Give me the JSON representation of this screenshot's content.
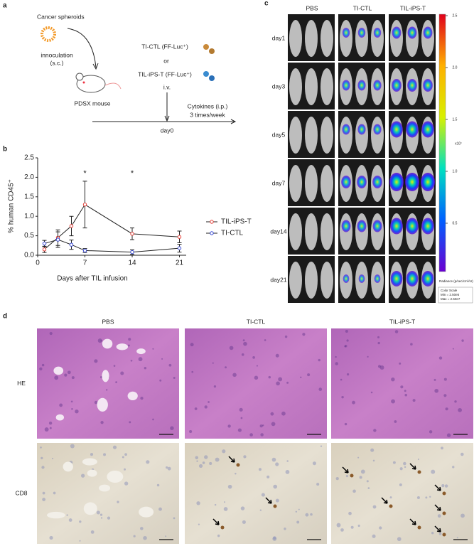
{
  "panel_labels": [
    "a",
    "b",
    "c",
    "d"
  ],
  "panel_a": {
    "spheroids": "Cancer spheroids",
    "inoculation": "innoculation",
    "route_sc": "(s.c.)",
    "mouse": "PDSX mouse",
    "ti_ctl": "TI-CTL (FF-Luc⁺)",
    "or": "or",
    "til_ips": "TIL-iPS-T (FF-Luc⁺)",
    "iv": "i.v.",
    "cytokines": "Cytokines (i.p.)",
    "schedule": "3 times/week",
    "day0": "day0"
  },
  "chart_data": {
    "type": "line",
    "x": [
      1,
      3,
      5,
      7,
      14,
      21
    ],
    "xlabel": "Days after TIL infusion",
    "ylabel": "% human CD45⁺",
    "xlim": [
      0,
      22
    ],
    "ylim": [
      0,
      2.5
    ],
    "xticks": [
      0,
      7,
      14,
      21
    ],
    "yticks": [
      {
        "value": 0,
        "label": "0.0"
      },
      0.5,
      {
        "value": 1,
        "label": "1.0"
      },
      1.5,
      {
        "value": 2,
        "label": "2.0"
      },
      2.5
    ],
    "annotations": [
      {
        "x": 7,
        "text": "*"
      },
      {
        "x": 14,
        "text": "*"
      }
    ],
    "legend": "right",
    "series": [
      {
        "name": "TIL-iPS-T",
        "color": "#e53b34",
        "values": [
          0.15,
          0.45,
          0.75,
          1.3,
          0.55,
          0.47
        ],
        "errors": [
          0.08,
          0.2,
          0.25,
          0.6,
          0.15,
          0.15
        ]
      },
      {
        "name": "TI-CTL",
        "color": "#3446d4",
        "values": [
          0.3,
          0.4,
          0.27,
          0.12,
          0.08,
          0.18
        ],
        "errors": [
          0.08,
          0.2,
          0.12,
          0.05,
          0.06,
          0.1
        ]
      }
    ]
  },
  "panel_c": {
    "columns": [
      "PBS",
      "TI-CTL",
      "TIL-iPS-T"
    ],
    "rows": [
      "day1",
      "day3",
      "day5",
      "day7",
      "day14",
      "day21"
    ],
    "colorbar": {
      "ticks": [
        "2.5",
        "2.0",
        "1.5",
        "1.0",
        "0.5"
      ],
      "multiplier": "x10⁷",
      "unit": "Radiance (p/sec/cm²/sr)",
      "scale_title": "Color Scale",
      "min": "Min = 2.50e5",
      "max": "Max = 2.50e7"
    }
  },
  "panel_d": {
    "columns": [
      "PBS",
      "TI-CTL",
      "TIL-iPS-T"
    ],
    "rows": [
      "HE",
      "CD8"
    ]
  }
}
